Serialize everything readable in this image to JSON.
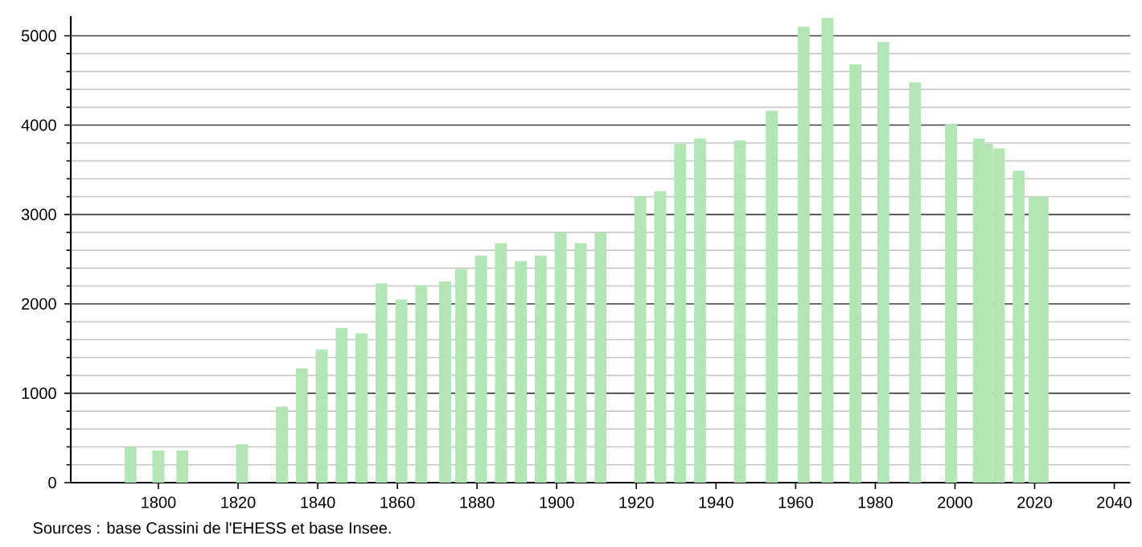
{
  "chart_data": {
    "type": "bar",
    "color": "#b3e6b5",
    "x": [
      1793,
      1800,
      1806,
      1821,
      1831,
      1836,
      1841,
      1846,
      1851,
      1856,
      1861,
      1866,
      1872,
      1876,
      1881,
      1886,
      1891,
      1896,
      1901,
      1906,
      1911,
      1921,
      1926,
      1931,
      1936,
      1946,
      1954,
      1962,
      1968,
      1975,
      1982,
      1990,
      1999,
      2006,
      2008,
      2011,
      2016,
      2020,
      2022
    ],
    "values": [
      400,
      360,
      360,
      430,
      850,
      1280,
      1490,
      1730,
      1670,
      2230,
      2050,
      2210,
      2250,
      2390,
      2540,
      2680,
      2480,
      2540,
      2800,
      2680,
      2800,
      3200,
      3260,
      3790,
      3850,
      3830,
      4160,
      5100,
      5200,
      4680,
      4930,
      4480,
      4010,
      3850,
      3790,
      3740,
      3490,
      3200,
      3200
    ],
    "xlim": [
      1778,
      2044
    ],
    "xticks": [
      1800,
      1820,
      1840,
      1860,
      1880,
      1900,
      1920,
      1940,
      1960,
      1980,
      2000,
      2020,
      2040
    ],
    "ylim": [
      0,
      5220
    ],
    "yticks": [
      0,
      1000,
      2000,
      3000,
      4000,
      5000
    ],
    "grid": "y",
    "annotations": [
      "Sources : base Cassini de l'EHESS et base Insee."
    ]
  }
}
